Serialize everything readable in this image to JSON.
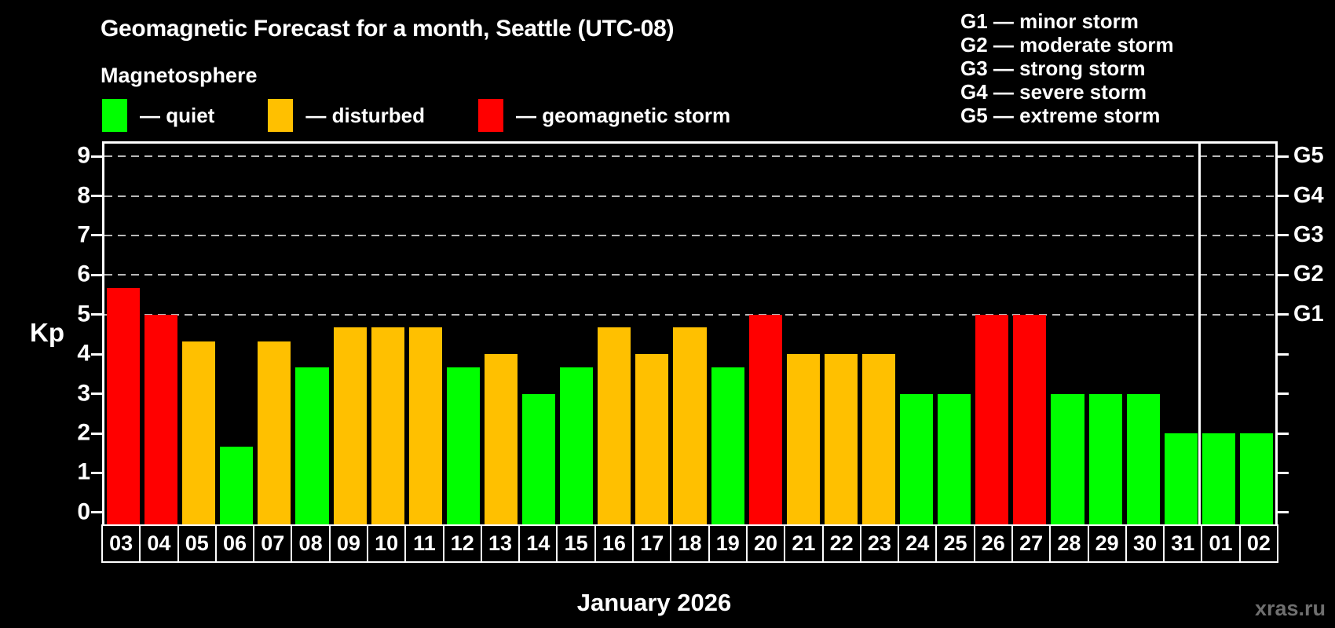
{
  "colors": {
    "background": "#000000",
    "text": "#ffffff",
    "grid": "#b8b8b8",
    "axis": "#ffffff",
    "watermark": "#6f6f6f",
    "quiet": "#00ff00",
    "disturbed": "#ffc000",
    "storm": "#ff0000"
  },
  "header": {
    "title": "Geomagnetic Forecast for a month, Seattle (UTC-08)",
    "subtitle": "Magnetosphere"
  },
  "legend": [
    {
      "key": "quiet",
      "label": "— quiet"
    },
    {
      "key": "disturbed",
      "label": "— disturbed"
    },
    {
      "key": "storm",
      "label": "— geomagnetic storm"
    }
  ],
  "storm_scale": [
    "G1 — minor storm",
    "G2 — moderate storm",
    "G3 — strong storm",
    "G4 — severe storm",
    "G5 — extreme storm"
  ],
  "chart_data": {
    "type": "bar",
    "ylabel": "Kp",
    "xlabel": "January 2026",
    "ylim": [
      0,
      9
    ],
    "yticks": [
      0,
      1,
      2,
      3,
      4,
      5,
      6,
      7,
      8,
      9
    ],
    "gridlines_at_kp": [
      5,
      6,
      7,
      8,
      9
    ],
    "grid": "dashed horizontal lines at storm levels only",
    "legend_position": "top-left",
    "right_axis": [
      {
        "kp": 5,
        "label": "G1"
      },
      {
        "kp": 6,
        "label": "G2"
      },
      {
        "kp": 7,
        "label": "G3"
      },
      {
        "kp": 8,
        "label": "G4"
      },
      {
        "kp": 9,
        "label": "G5"
      }
    ],
    "categories": [
      "03",
      "04",
      "05",
      "06",
      "07",
      "08",
      "09",
      "10",
      "11",
      "12",
      "13",
      "14",
      "15",
      "16",
      "17",
      "18",
      "19",
      "20",
      "21",
      "22",
      "23",
      "24",
      "25",
      "26",
      "27",
      "28",
      "29",
      "30",
      "31",
      "01",
      "02"
    ],
    "values": [
      5.67,
      5,
      4.33,
      1.67,
      4.33,
      3.67,
      4.67,
      4.67,
      4.67,
      3.67,
      4,
      3,
      3.67,
      4.67,
      4,
      4.67,
      3.67,
      5,
      4,
      4,
      4,
      3,
      3,
      5,
      5,
      3,
      3,
      3,
      2,
      2,
      2
    ],
    "statuses": [
      "storm",
      "storm",
      "disturbed",
      "quiet",
      "disturbed",
      "quiet",
      "disturbed",
      "disturbed",
      "disturbed",
      "quiet",
      "disturbed",
      "quiet",
      "quiet",
      "disturbed",
      "disturbed",
      "disturbed",
      "quiet",
      "storm",
      "disturbed",
      "disturbed",
      "disturbed",
      "quiet",
      "quiet",
      "storm",
      "storm",
      "quiet",
      "quiet",
      "quiet",
      "quiet",
      "quiet",
      "quiet"
    ],
    "month_separator_before_index": 29
  },
  "footer": {
    "watermark": "xras.ru"
  }
}
